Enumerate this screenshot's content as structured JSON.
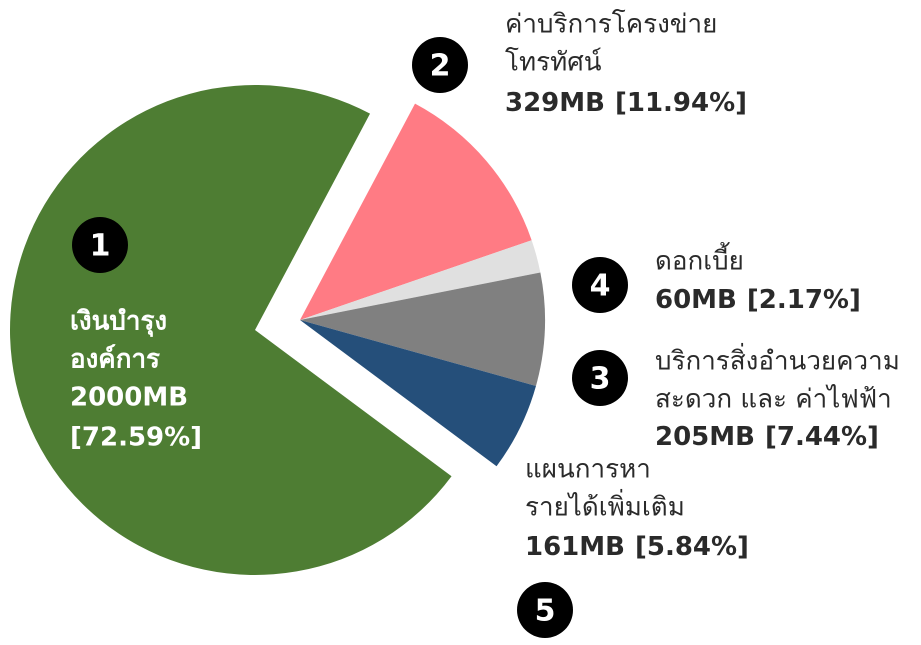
{
  "chart_data": {
    "type": "pie",
    "categories": [
      [
        "ค่าบริการโครงข่าย",
        "โทรทัศน์"
      ],
      [
        "ดอกเบี้ย"
      ],
      [
        "บริการสิ่งอำนวยความ",
        "สะดวก และ ค่าไฟฟ้า"
      ],
      [
        "แผนการหา",
        "รายได้เพิ่มเติม"
      ],
      [
        "เงินบำรุง",
        "องค์การ"
      ]
    ],
    "numbers": [
      "2",
      "4",
      "3",
      "5",
      "1"
    ],
    "values": [
      329,
      60,
      205,
      161,
      2000
    ],
    "value_labels": [
      "329MB",
      "60MB",
      "205MB",
      "161MB",
      "2000MB"
    ],
    "percents": [
      11.94,
      2.17,
      7.44,
      5.84,
      72.59
    ],
    "percent_labels": [
      "[11.94%]",
      "[2.17%]",
      "[7.44%]",
      "[5.84%]",
      "[72.59%]"
    ],
    "colors": [
      "#ff7b84",
      "#e0e0e0",
      "#808080",
      "#254f7a",
      "#4e7d33"
    ]
  }
}
